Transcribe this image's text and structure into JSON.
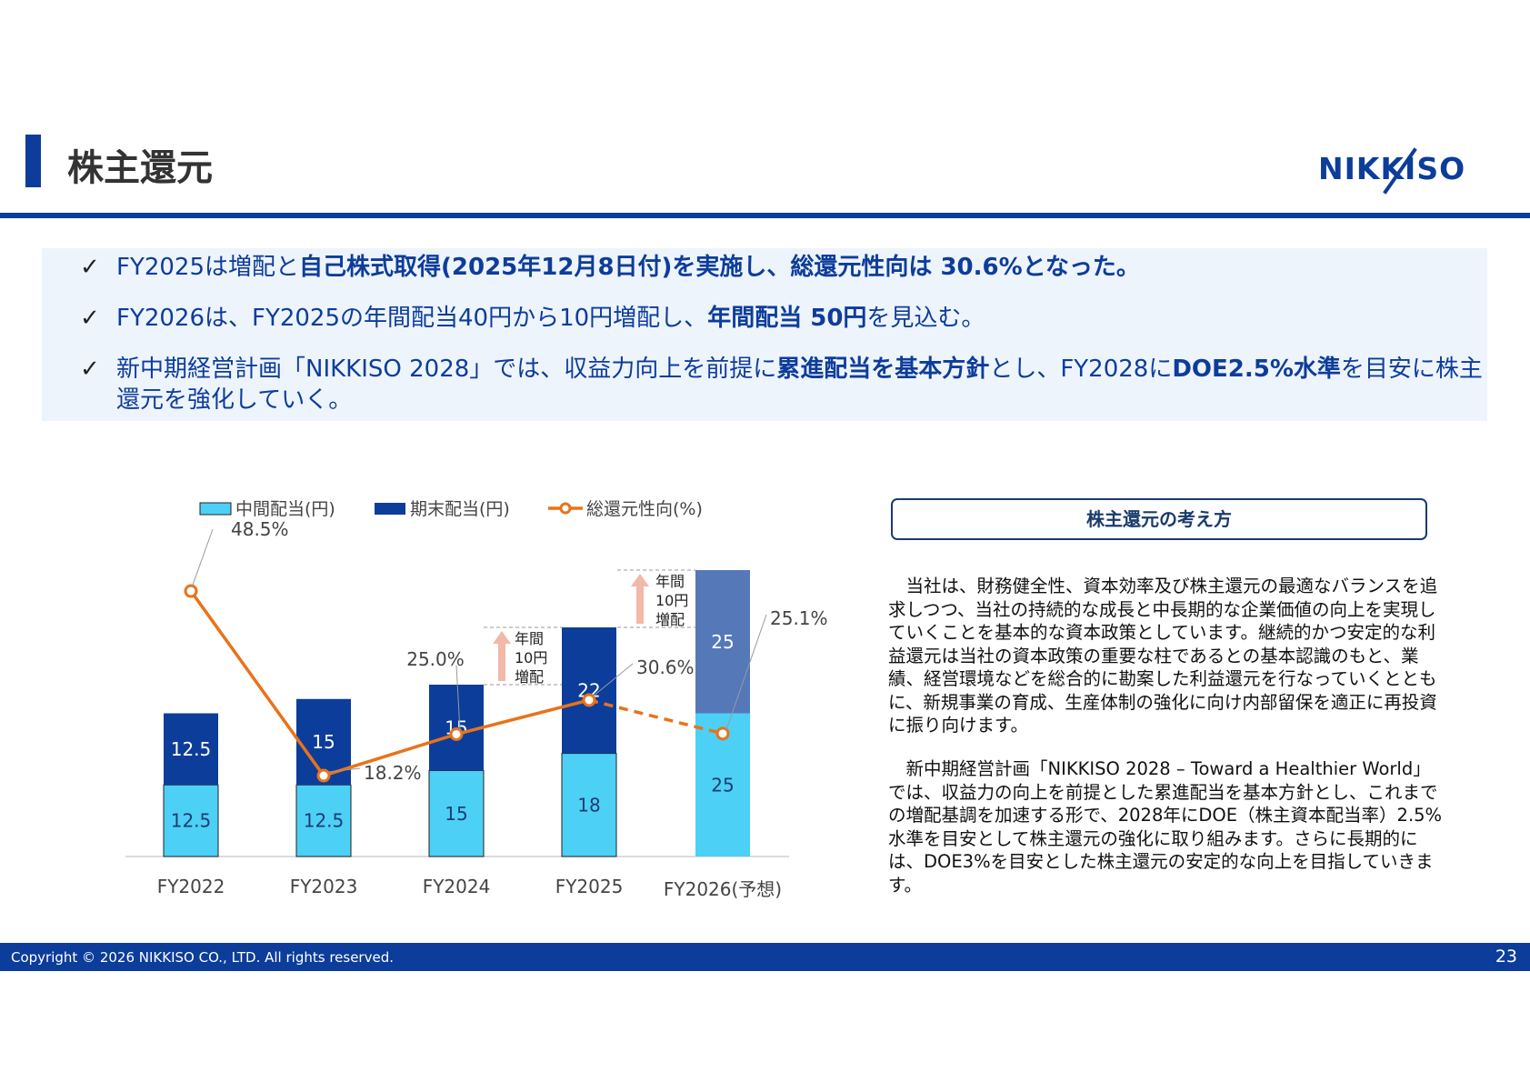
{
  "header": {
    "title": "株主還元",
    "logo_text": "NIKKISO"
  },
  "bullets": [
    {
      "check": "✓",
      "parts": [
        {
          "text": "FY2025は増配と",
          "bold": false
        },
        {
          "text": "自己株式取得(2025年12月8日付)を実施し、総還元性向は 30.6%となった。",
          "bold": true
        }
      ]
    },
    {
      "check": "✓",
      "parts": [
        {
          "text": "FY2026は、FY2025の年間配当40円から10円増配し、",
          "bold": false
        },
        {
          "text": "年間配当 50円",
          "bold": true
        },
        {
          "text": "を見込む。",
          "bold": false
        }
      ]
    },
    {
      "check": "✓",
      "parts": [
        {
          "text": "新中期経営計画「NIKKISO 2028」では、収益力向上を前提に",
          "bold": false
        },
        {
          "text": "累進配当を基本方針",
          "bold": true
        },
        {
          "text": "とし、FY2028に",
          "bold": false
        },
        {
          "text": "DOE2.5%水準",
          "bold": true
        },
        {
          "text": "を目安に株主還元を強化していく。",
          "bold": false
        }
      ]
    }
  ],
  "chart_data": {
    "type": "bar",
    "categories": [
      "FY2022",
      "FY2023",
      "FY2024",
      "FY2025",
      "FY2026(予想)"
    ],
    "series": [
      {
        "name": "中間配当(円)",
        "kind": "bar",
        "values": [
          12.5,
          12.5,
          15,
          18,
          25
        ]
      },
      {
        "name": "期末配当(円)",
        "kind": "bar",
        "values": [
          12.5,
          15,
          15,
          22,
          25
        ]
      },
      {
        "name": "総還元性向(%)",
        "kind": "line",
        "values": [
          48.5,
          18.2,
          25.0,
          30.6,
          25.1
        ],
        "labels": [
          "48.5%",
          "18.2%",
          "25.0%",
          "30.6%",
          "25.1%"
        ],
        "last_segment_dashed": true
      }
    ],
    "annotations": [
      {
        "text": [
          "年間",
          "10円",
          "増配"
        ],
        "between": [
          "FY2024",
          "FY2025"
        ]
      },
      {
        "text": [
          "年間",
          "10円",
          "増配"
        ],
        "between": [
          "FY2025",
          "FY2026(予想)"
        ]
      }
    ],
    "colors": {
      "interim": "#4dd0f5",
      "year_end": "#0d3d9a",
      "forecast_year_end": "#5578b9",
      "line": "#e8731a",
      "arrow": "#f2b8a8"
    },
    "legend_position": "top",
    "grid": false
  },
  "policy": {
    "title": "株主還元の考え方",
    "paragraphs": [
      "　当社は、財務健全性、資本効率及び株主還元の最適なバランスを追求しつつ、当社の持続的な成長と中長期的な企業価値の向上を実現していくことを基本的な資本政策としています。継続的かつ安定的な利益還元は当社の資本政策の重要な柱であるとの基本認識のもと、業績、経営環境などを総合的に勘案した利益還元を行なっていくとともに、新規事業の育成、生産体制の強化に向け内部留保を適正に再投資に振り向けます。",
      "　新中期経営計画「NIKKISO 2028 – Toward a Healthier World」では、収益力の向上を前提とした累進配当を基本方針とし、これまでの増配基調を加速する形で、2028年にDOE（株主資本配当率）2.5%水準を目安として株主還元の強化に取り組みます。さらに長期的には、DOE3%を目安とした株主還元の安定的な向上を目指していきます。"
    ]
  },
  "footer": {
    "copyright": "Copyright © 2026 NIKKISO CO., LTD. All rights reserved.",
    "page_number": "23"
  }
}
